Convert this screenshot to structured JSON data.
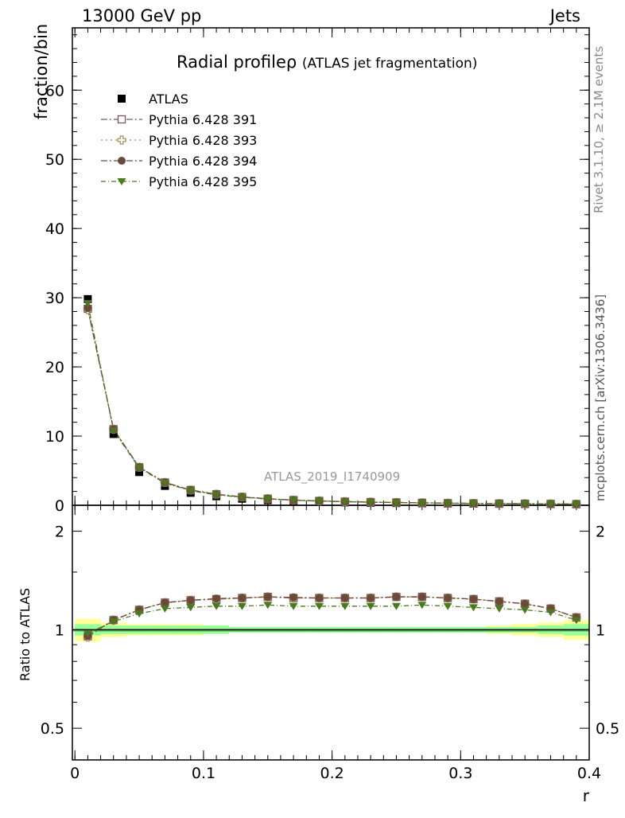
{
  "header": {
    "left": "13000 GeV pp",
    "right": "Jets"
  },
  "side_labels": {
    "rivet": "Rivet 3.1.10, ≥ 2.1M events",
    "mcplots": "mcplots.cern.ch [arXiv:1306.3436]"
  },
  "watermark": "ATLAS_2019_I1740909",
  "chart_data": {
    "type": "scatter",
    "title": "Radial profileρ",
    "subtitle": "(ATLAS jet fragmentation)",
    "xlabel": "r",
    "ylabel": "fraction/bin",
    "ratio_ylabel": "Ratio to ATLAS",
    "xlim": [
      -0.002,
      0.4
    ],
    "ylim": [
      0,
      69
    ],
    "ratio_ylim": [
      0.4,
      2.4
    ],
    "ratio_scale": "log",
    "x_ticks": [
      "0",
      "0.1",
      "0.2",
      "0.3",
      "0.4"
    ],
    "y_ticks": [
      "0",
      "10",
      "20",
      "30",
      "40",
      "50",
      "60"
    ],
    "ratio_ticks": [
      "0.5",
      "1",
      "2"
    ],
    "legend_position": "top-left",
    "x": [
      0.01,
      0.03,
      0.05,
      0.07,
      0.09,
      0.11,
      0.13,
      0.15,
      0.17,
      0.19,
      0.21,
      0.23,
      0.25,
      0.27,
      0.29,
      0.31,
      0.33,
      0.35,
      0.37,
      0.39
    ],
    "data": {
      "name": "ATLAS",
      "marker": "square-filled",
      "color": "#000000",
      "values": [
        29.8,
        10.3,
        4.8,
        2.8,
        1.8,
        1.3,
        0.95,
        0.75,
        0.6,
        0.5,
        0.42,
        0.36,
        0.32,
        0.28,
        0.25,
        0.23,
        0.21,
        0.19,
        0.17,
        0.15
      ],
      "band_inner": [
        0.04,
        0.03,
        0.03,
        0.03,
        0.03,
        0.03,
        0.02,
        0.02,
        0.02,
        0.02,
        0.02,
        0.02,
        0.02,
        0.02,
        0.02,
        0.02,
        0.02,
        0.02,
        0.03,
        0.04
      ],
      "band_outer": [
        0.08,
        0.05,
        0.04,
        0.04,
        0.04,
        0.03,
        0.02,
        0.02,
        0.02,
        0.02,
        0.02,
        0.02,
        0.02,
        0.02,
        0.02,
        0.02,
        0.03,
        0.04,
        0.05,
        0.07
      ]
    },
    "series": [
      {
        "name": "Pythia 6.428 391",
        "marker": "square-open",
        "color": "#805060",
        "dash": "8,3,2,3",
        "values": [
          28.4,
          11.0,
          5.5,
          3.3,
          2.2,
          1.6,
          1.2,
          0.95,
          0.75,
          0.63,
          0.53,
          0.46,
          0.41,
          0.36,
          0.31,
          0.28,
          0.25,
          0.23,
          0.2,
          0.17
        ],
        "ratio": [
          0.955,
          1.07,
          1.15,
          1.21,
          1.23,
          1.24,
          1.25,
          1.26,
          1.25,
          1.25,
          1.25,
          1.25,
          1.26,
          1.26,
          1.25,
          1.24,
          1.22,
          1.2,
          1.16,
          1.09
        ]
      },
      {
        "name": "Pythia 6.428 393",
        "marker": "cross-open",
        "color": "#a08850",
        "dash": "2,4",
        "values": [
          28.3,
          11.0,
          5.5,
          3.3,
          2.2,
          1.6,
          1.2,
          0.95,
          0.75,
          0.63,
          0.53,
          0.46,
          0.41,
          0.36,
          0.31,
          0.28,
          0.25,
          0.23,
          0.2,
          0.17
        ],
        "ratio": [
          0.95,
          1.07,
          1.15,
          1.21,
          1.23,
          1.24,
          1.25,
          1.26,
          1.25,
          1.25,
          1.25,
          1.25,
          1.26,
          1.26,
          1.25,
          1.24,
          1.22,
          1.2,
          1.16,
          1.09
        ]
      },
      {
        "name": "Pythia 6.428 394",
        "marker": "circle-filled",
        "color": "#6b4a3a",
        "dash": "8,3,2,3",
        "values": [
          28.5,
          11.0,
          5.5,
          3.3,
          2.2,
          1.6,
          1.2,
          0.95,
          0.75,
          0.63,
          0.53,
          0.46,
          0.41,
          0.36,
          0.31,
          0.28,
          0.25,
          0.23,
          0.2,
          0.17
        ],
        "ratio": [
          0.957,
          1.07,
          1.15,
          1.21,
          1.23,
          1.245,
          1.25,
          1.26,
          1.255,
          1.25,
          1.25,
          1.25,
          1.26,
          1.26,
          1.25,
          1.24,
          1.22,
          1.2,
          1.16,
          1.09
        ]
      },
      {
        "name": "Pythia 6.428 395",
        "marker": "triangle-down-filled",
        "color": "#4a7a20",
        "dash": "6,3,1,3",
        "values": [
          29.2,
          10.8,
          5.4,
          3.2,
          2.1,
          1.5,
          1.15,
          0.9,
          0.72,
          0.6,
          0.5,
          0.44,
          0.39,
          0.34,
          0.3,
          0.27,
          0.24,
          0.22,
          0.19,
          0.16
        ],
        "ratio": [
          0.975,
          1.06,
          1.12,
          1.16,
          1.17,
          1.18,
          1.18,
          1.19,
          1.18,
          1.18,
          1.18,
          1.18,
          1.18,
          1.19,
          1.18,
          1.17,
          1.16,
          1.15,
          1.13,
          1.07
        ]
      }
    ]
  }
}
